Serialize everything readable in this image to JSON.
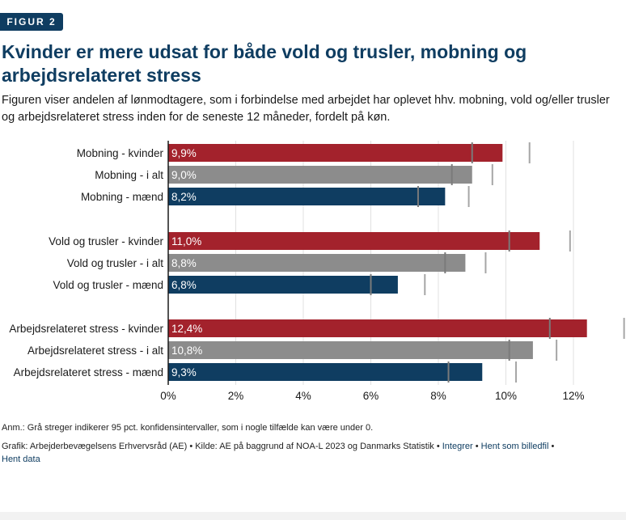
{
  "header": {
    "badge": "FIGUR 2",
    "title": "Kvinder er mere udsat for både vold og trusler, mobning og arbejdsrelateret stress",
    "subtitle": "Figuren viser andelen af lønmodtagere, som i forbindelse med arbejdet har oplevet hhv. mobning, vold og/eller trusler og arbejdsrelateret stress inden for de seneste 12 måneder, fordelt på køn."
  },
  "notes": {
    "anm": "Anm.: Grå streger indikerer 95 pct. konfidensintervaller, som i nogle tilfælde kan være under 0.",
    "source": "Grafik: Arbejderbevægelsens Erhvervsråd (AE) • Kilde: AE på baggrund af NOA-L 2023 og Danmarks Statistik •",
    "link_embed": "Integrer",
    "link_image": "Hent som billedfil",
    "link_data": "Hent data",
    "bullet": "•"
  },
  "colors": {
    "kvinder": "#a3222c",
    "i_alt": "#8c8c8c",
    "maend": "#0f3d61",
    "accent": "#0f3d61"
  },
  "chart_data": {
    "type": "bar",
    "orientation": "horizontal",
    "xlim": [
      0,
      13
    ],
    "xticks": [
      0,
      2,
      4,
      6,
      8,
      10,
      12
    ],
    "xtick_labels": [
      "0%",
      "2%",
      "4%",
      "6%",
      "8%",
      "10%",
      "12%"
    ],
    "bars": [
      {
        "label": "Mobning - kvinder",
        "value": 9.9,
        "value_label": "9,9%",
        "group": "kvinder",
        "ci": [
          9.0,
          10.7
        ]
      },
      {
        "label": "Mobning - i alt",
        "value": 9.0,
        "value_label": "9,0%",
        "group": "i_alt",
        "ci": [
          8.4,
          9.6
        ]
      },
      {
        "label": "Mobning - mænd",
        "value": 8.2,
        "value_label": "8,2%",
        "group": "maend",
        "ci": [
          7.4,
          8.9
        ]
      },
      {
        "label": "Vold og trusler - kvinder",
        "value": 11.0,
        "value_label": "11,0%",
        "group": "kvinder",
        "ci": [
          10.1,
          11.9
        ]
      },
      {
        "label": "Vold og trusler - i alt",
        "value": 8.8,
        "value_label": "8,8%",
        "group": "i_alt",
        "ci": [
          8.2,
          9.4
        ]
      },
      {
        "label": "Vold og trusler - mænd",
        "value": 6.8,
        "value_label": "6,8%",
        "group": "maend",
        "ci": [
          6.0,
          7.6
        ]
      },
      {
        "label": "Arbejdsrelateret stress - kvinder",
        "value": 12.4,
        "value_label": "12,4%",
        "group": "kvinder",
        "ci": [
          11.3,
          13.5
        ]
      },
      {
        "label": "Arbejdsrelateret stress - i alt",
        "value": 10.8,
        "value_label": "10,8%",
        "group": "i_alt",
        "ci": [
          10.1,
          11.5
        ]
      },
      {
        "label": "Arbejdsrelateret stress - mænd",
        "value": 9.3,
        "value_label": "9,3%",
        "group": "maend",
        "ci": [
          8.3,
          10.3
        ]
      }
    ]
  }
}
